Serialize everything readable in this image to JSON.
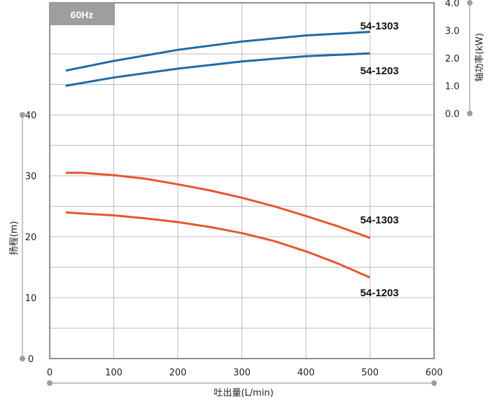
{
  "chart_data": {
    "type": "line",
    "badge": "60Hz",
    "xlabel": "吐出量(L/min)",
    "y_left_label": "扬程(m)",
    "y_right_label": "轴功率(kW)",
    "x_ticks": [
      "0",
      "100",
      "200",
      "300",
      "400",
      "500",
      "600"
    ],
    "y_left_ticks": [
      "0",
      "10",
      "20",
      "30",
      "40"
    ],
    "y_right_ticks": [
      "0.0",
      "1.0",
      "2.0",
      "3.0",
      "4.0"
    ],
    "xlim": [
      0,
      600
    ],
    "ylim_head": [
      0,
      40
    ],
    "ylim_power": [
      0,
      4
    ],
    "grid": true,
    "colors": {
      "head": "#e4572e",
      "power": "#1f6aa5",
      "badge": "#9e9e9e",
      "grid": "#bdbdbd"
    },
    "head_series": [
      {
        "name": "54-1303",
        "x": [
          25,
          50,
          100,
          150,
          200,
          250,
          300,
          350,
          400,
          450,
          500
        ],
        "values": [
          30.5,
          30.5,
          30.1,
          29.5,
          28.6,
          27.6,
          26.4,
          25.0,
          23.4,
          21.7,
          19.8
        ]
      },
      {
        "name": "54-1203",
        "x": [
          25,
          50,
          100,
          150,
          200,
          250,
          300,
          350,
          400,
          450,
          500
        ],
        "values": [
          24.0,
          23.8,
          23.5,
          23.0,
          22.4,
          21.6,
          20.6,
          19.3,
          17.6,
          15.6,
          13.3
        ]
      }
    ],
    "power_series": [
      {
        "name": "54-1303",
        "x": [
          25,
          100,
          200,
          300,
          400,
          500
        ],
        "values": [
          1.55,
          1.9,
          2.3,
          2.6,
          2.82,
          2.95
        ]
      },
      {
        "name": "54-1203",
        "x": [
          25,
          100,
          200,
          300,
          400,
          500
        ],
        "values": [
          1.0,
          1.3,
          1.62,
          1.88,
          2.07,
          2.17
        ]
      }
    ]
  }
}
